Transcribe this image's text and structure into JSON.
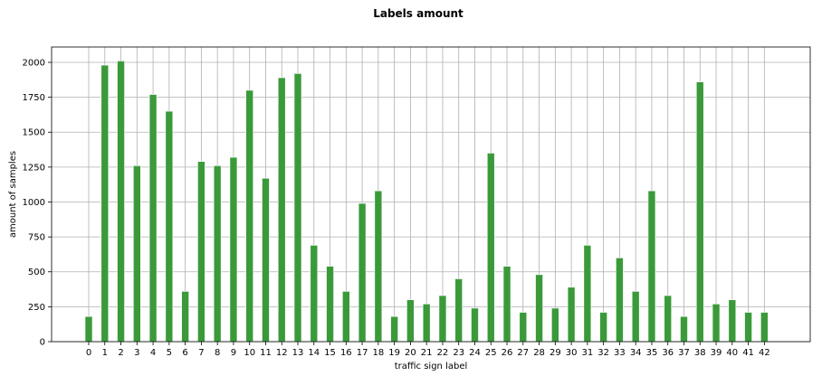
{
  "chart_data": {
    "type": "bar",
    "title": "Labels amount",
    "xlabel": "traffic sign label",
    "ylabel": "amount of samples",
    "ylim": [
      0,
      2110
    ],
    "yticks": [
      0,
      250,
      500,
      750,
      1000,
      1250,
      1500,
      1750,
      2000
    ],
    "grid": true,
    "bar_color": "#3a9a3a",
    "categories": [
      "0",
      "1",
      "2",
      "3",
      "4",
      "5",
      "6",
      "7",
      "8",
      "9",
      "10",
      "11",
      "12",
      "13",
      "14",
      "15",
      "16",
      "17",
      "18",
      "19",
      "20",
      "21",
      "22",
      "23",
      "24",
      "25",
      "26",
      "27",
      "28",
      "29",
      "30",
      "31",
      "32",
      "33",
      "34",
      "35",
      "36",
      "37",
      "38",
      "39",
      "40",
      "41",
      "42"
    ],
    "values": [
      180,
      1980,
      2010,
      1260,
      1770,
      1650,
      360,
      1290,
      1260,
      1320,
      1800,
      1170,
      1890,
      1920,
      690,
      540,
      360,
      990,
      1080,
      180,
      300,
      270,
      330,
      450,
      240,
      1350,
      540,
      210,
      480,
      240,
      390,
      690,
      210,
      600,
      360,
      1080,
      330,
      180,
      1860,
      270,
      300,
      210,
      210
    ]
  }
}
